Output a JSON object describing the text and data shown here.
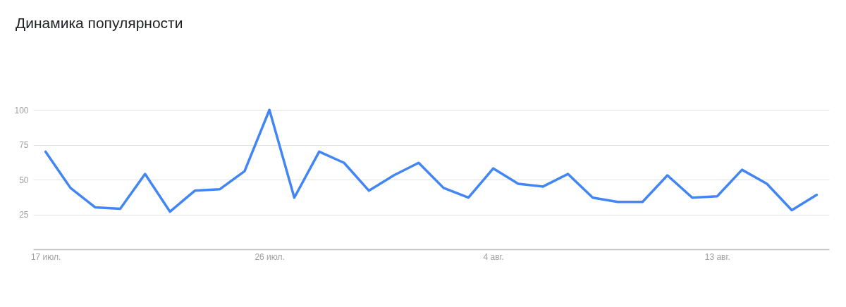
{
  "chart_data": {
    "type": "line",
    "title": "Динамика популярности",
    "categories": [
      "17 июл.",
      null,
      null,
      null,
      null,
      null,
      null,
      null,
      null,
      "26 июл.",
      null,
      null,
      null,
      null,
      null,
      null,
      null,
      null,
      "4 авг.",
      null,
      null,
      null,
      null,
      null,
      null,
      null,
      null,
      "13 авг.",
      null,
      null,
      null,
      null
    ],
    "series": [
      {
        "color": "#4285f4",
        "values": [
          70,
          44,
          30,
          29,
          54,
          27,
          42,
          43,
          56,
          100,
          37,
          70,
          62,
          42,
          53,
          62,
          44,
          37,
          58,
          47,
          45,
          54,
          37,
          34,
          34,
          53,
          37,
          38,
          57,
          47,
          28,
          39
        ]
      }
    ],
    "ylim": [
      0,
      100
    ],
    "yticks": [
      25,
      50,
      75,
      100
    ],
    "grid": "y",
    "line_style": "solid"
  }
}
